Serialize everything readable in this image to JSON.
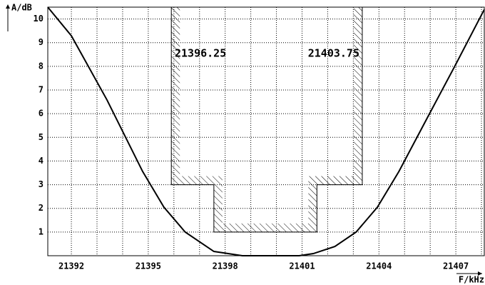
{
  "chart_data": {
    "type": "line",
    "y_label": "A/dB",
    "x_label": "F/kHz",
    "annotations": [
      "21396.25",
      "21403.75"
    ],
    "xlim": [
      21391.08,
      21408.11
    ],
    "ylim": [
      0,
      10.5
    ],
    "xticks": [
      21392,
      21395,
      21398,
      21401,
      21404,
      21407
    ],
    "xminor_ticks": [
      21393,
      21394,
      21396,
      21397,
      21399,
      21400,
      21402,
      21403,
      21405,
      21406,
      21408
    ],
    "yticks": [
      1,
      2,
      3,
      4,
      5,
      6,
      7,
      8,
      9,
      10
    ],
    "grid": true,
    "series": [
      {
        "color": "#000000",
        "x": [
          21391.08,
          21392,
          21393.39,
          21394.78,
          21395.61,
          21396.44,
          21397.56,
          21398.67,
          21400.89,
          21401.44,
          21402.28,
          21403.11,
          21403.94,
          21404.78,
          21405.89,
          21407,
          21408.11
        ],
        "values": [
          10.5,
          9.29,
          6.58,
          3.56,
          2.05,
          1.0,
          0.18,
          0,
          0,
          0.09,
          0.39,
          1.0,
          2.05,
          3.56,
          5.83,
          8.09,
          10.4
        ]
      }
    ],
    "mask": {
      "color": "#000000",
      "x": [
        21395.9,
        21395.9,
        21397.56,
        21397.56,
        21401.58,
        21401.58,
        21403.35,
        21403.35
      ],
      "values": [
        10.5,
        3,
        3,
        1,
        1,
        3,
        3,
        10.5
      ]
    }
  }
}
